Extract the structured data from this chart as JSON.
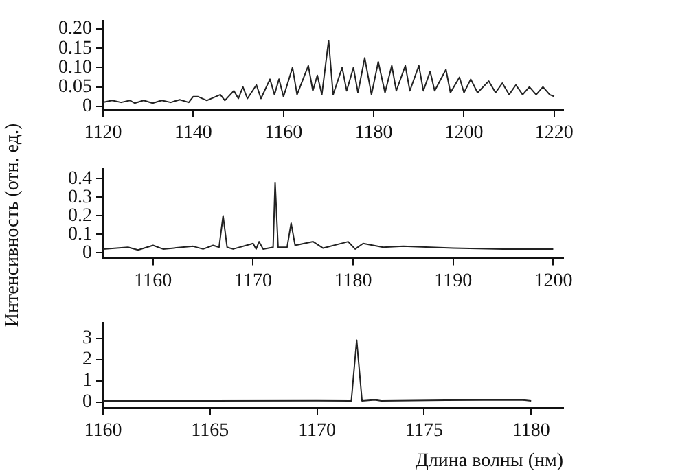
{
  "chart_data": [
    {
      "type": "line",
      "color": "#222222",
      "marker": "none",
      "xlim": [
        1120,
        1222
      ],
      "xticks": [
        1120,
        1140,
        1160,
        1180,
        1200,
        1220
      ],
      "ylim": [
        -0.01,
        0.22
      ],
      "yticks": [
        0,
        0.05,
        {
          "value": 0.1,
          "label": "0.10"
        },
        0.15,
        {
          "value": 0.2,
          "label": "0.20"
        }
      ],
      "x": [
        1120,
        1122,
        1124,
        1126,
        1127,
        1129,
        1131,
        1133,
        1135,
        1137,
        1139,
        1140,
        1141,
        1143,
        1146,
        1147,
        1149,
        1150,
        1151,
        1152,
        1154,
        1155,
        1157,
        1158,
        1159,
        1160,
        1162,
        1163,
        1165.5,
        1166.5,
        1167.5,
        1168.5,
        1170,
        1171,
        1173,
        1174,
        1175.5,
        1176.5,
        1178,
        1179.5,
        1181,
        1182.5,
        1184,
        1185,
        1187,
        1188,
        1190,
        1191,
        1192.5,
        1193.5,
        1196,
        1197,
        1199,
        1200,
        1201.5,
        1203,
        1205.5,
        1207,
        1208.5,
        1210,
        1211.5,
        1213,
        1214.5,
        1216,
        1217.5,
        1219,
        1220
      ],
      "values": [
        0.01,
        0.015,
        0.01,
        0.015,
        0.008,
        0.015,
        0.008,
        0.015,
        0.01,
        0.017,
        0.01,
        0.025,
        0.025,
        0.015,
        0.03,
        0.015,
        0.04,
        0.02,
        0.05,
        0.02,
        0.055,
        0.02,
        0.07,
        0.03,
        0.07,
        0.025,
        0.1,
        0.03,
        0.105,
        0.04,
        0.08,
        0.03,
        0.17,
        0.03,
        0.1,
        0.04,
        0.1,
        0.035,
        0.125,
        0.03,
        0.115,
        0.035,
        0.105,
        0.04,
        0.105,
        0.04,
        0.105,
        0.04,
        0.09,
        0.04,
        0.095,
        0.035,
        0.075,
        0.035,
        0.07,
        0.035,
        0.065,
        0.035,
        0.06,
        0.03,
        0.055,
        0.03,
        0.05,
        0.03,
        0.05,
        0.03,
        0.025
      ]
    },
    {
      "type": "line",
      "color": "#222222",
      "marker": "none",
      "ylabel": "Интенсивность (отн. ед.)",
      "xlim": [
        1155,
        1201
      ],
      "xticks": [
        1160,
        1170,
        1180,
        1190,
        1200
      ],
      "ylim": [
        -0.03,
        0.45
      ],
      "yticks": [
        0,
        0.1,
        0.2,
        0.3,
        0.4
      ],
      "x": [
        1155,
        1157.5,
        1158.5,
        1160,
        1161,
        1164,
        1165,
        1166,
        1166.6,
        1167,
        1167.4,
        1168,
        1170,
        1170.3,
        1170.6,
        1171,
        1172,
        1172.2,
        1172.5,
        1173.4,
        1173.8,
        1174.2,
        1176,
        1177,
        1179.5,
        1180.2,
        1181,
        1183,
        1185,
        1190,
        1195,
        1200
      ],
      "values": [
        0.02,
        0.03,
        0.015,
        0.04,
        0.02,
        0.035,
        0.02,
        0.04,
        0.03,
        0.2,
        0.03,
        0.02,
        0.05,
        0.02,
        0.06,
        0.02,
        0.03,
        0.38,
        0.03,
        0.03,
        0.16,
        0.04,
        0.06,
        0.025,
        0.06,
        0.02,
        0.05,
        0.03,
        0.035,
        0.025,
        0.02,
        0.02
      ]
    },
    {
      "type": "line",
      "color": "#222222",
      "marker": "none",
      "xlabel": "Длина волны (нм)",
      "xlim": [
        1160,
        1181.5
      ],
      "xticks": [
        1160,
        1165,
        1170,
        1175,
        1180
      ],
      "ylim": [
        -0.3,
        3.7
      ],
      "yticks": [
        0,
        1,
        2,
        3
      ],
      "x": [
        1160,
        1165,
        1170,
        1171.6,
        1171.85,
        1172.1,
        1172.7,
        1173,
        1176,
        1179.5,
        1180
      ],
      "values": [
        0.05,
        0.05,
        0.06,
        0.05,
        2.9,
        0.05,
        0.1,
        0.05,
        0.08,
        0.1,
        0.05
      ]
    }
  ]
}
